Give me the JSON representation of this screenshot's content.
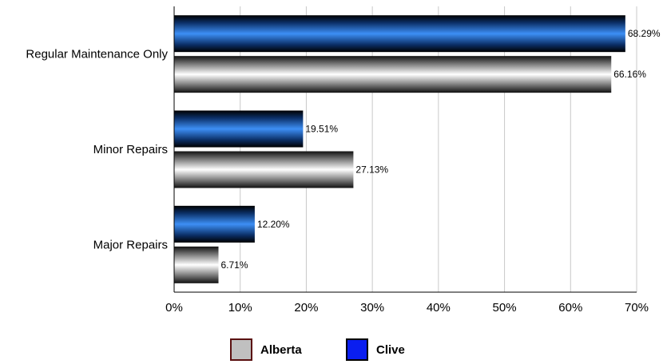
{
  "chart_data": {
    "type": "bar",
    "orientation": "horizontal",
    "categories": [
      "Regular Maintenance Only",
      "Minor Repairs",
      "Major Repairs"
    ],
    "series": [
      {
        "name": "Clive",
        "values": [
          68.29,
          19.51,
          12.2
        ],
        "labels": [
          "68.29%",
          "19.51%",
          "12.20%"
        ],
        "color": "#1f6fe0"
      },
      {
        "name": "Alberta",
        "values": [
          66.16,
          27.13,
          6.71
        ],
        "labels": [
          "66.16%",
          "27.13%",
          "6.71%"
        ],
        "color": "#bdbdbd"
      }
    ],
    "xlim": [
      0,
      70
    ],
    "x_ticks": [
      "0%",
      "10%",
      "20%",
      "30%",
      "40%",
      "50%",
      "60%",
      "70%"
    ],
    "grid": true,
    "legend_position": "bottom"
  },
  "legend": {
    "alberta": {
      "label": "Alberta",
      "color": "#c0c0c0",
      "border": "#5a1010"
    },
    "clive": {
      "label": "Clive",
      "color": "#0a1ef0",
      "border": "#000000"
    }
  }
}
